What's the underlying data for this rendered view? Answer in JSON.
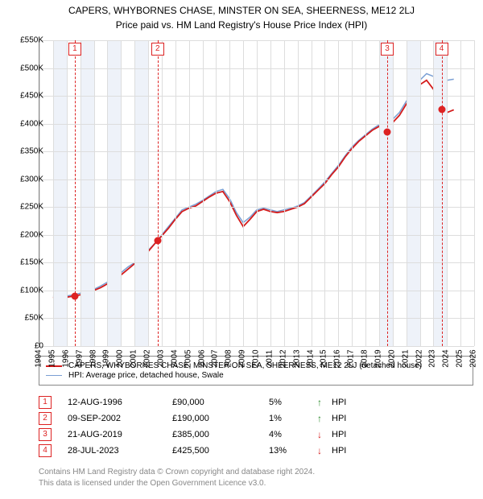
{
  "title_line1": "CAPERS, WHYBORNES CHASE, MINSTER ON SEA, SHEERNESS, ME12 2LJ",
  "title_line2": "Price paid vs. HM Land Registry's House Price Index (HPI)",
  "chart": {
    "type": "line",
    "x_min": 1994,
    "x_max": 2026,
    "y_min": 0,
    "y_max": 550000,
    "y_ticks": [
      0,
      50000,
      100000,
      150000,
      200000,
      250000,
      300000,
      350000,
      400000,
      450000,
      500000,
      550000
    ],
    "y_tick_labels": [
      "£0",
      "£50K",
      "£100K",
      "£150K",
      "£200K",
      "£250K",
      "£300K",
      "£350K",
      "£400K",
      "£450K",
      "£500K",
      "£550K"
    ],
    "x_ticks": [
      1994,
      1995,
      1996,
      1997,
      1998,
      1999,
      2000,
      2001,
      2002,
      2003,
      2004,
      2005,
      2006,
      2007,
      2008,
      2009,
      2010,
      2011,
      2012,
      2013,
      2014,
      2015,
      2016,
      2017,
      2018,
      2019,
      2020,
      2021,
      2022,
      2023,
      2024,
      2025,
      2026
    ],
    "band_years": [
      [
        1995,
        1996
      ],
      [
        1997,
        1998
      ],
      [
        1999,
        2000
      ],
      [
        2001,
        2002
      ],
      [
        2019,
        2020
      ],
      [
        2021,
        2022
      ],
      [
        2023,
        2024
      ]
    ],
    "grid_color": "#dddddd",
    "background_color": "#ffffff",
    "band_color": "#eef2f9",
    "series": [
      {
        "name": "HPI: Average price, detached house, Swale",
        "color": "#7a9fd4",
        "width": 1.5,
        "data": [
          [
            1995.0,
            90000
          ],
          [
            1995.5,
            88000
          ],
          [
            1996.0,
            90000
          ],
          [
            1996.5,
            92000
          ],
          [
            1997.0,
            95000
          ],
          [
            1997.5,
            98000
          ],
          [
            1998.0,
            102000
          ],
          [
            1998.5,
            108000
          ],
          [
            1999.0,
            115000
          ],
          [
            1999.5,
            122000
          ],
          [
            2000.0,
            132000
          ],
          [
            2000.5,
            142000
          ],
          [
            2001.0,
            150000
          ],
          [
            2001.5,
            160000
          ],
          [
            2002.0,
            172000
          ],
          [
            2002.5,
            185000
          ],
          [
            2003.0,
            200000
          ],
          [
            2003.5,
            215000
          ],
          [
            2004.0,
            230000
          ],
          [
            2004.5,
            245000
          ],
          [
            2005.0,
            250000
          ],
          [
            2005.5,
            255000
          ],
          [
            2006.0,
            262000
          ],
          [
            2006.5,
            270000
          ],
          [
            2007.0,
            278000
          ],
          [
            2007.5,
            282000
          ],
          [
            2008.0,
            265000
          ],
          [
            2008.5,
            240000
          ],
          [
            2009.0,
            222000
          ],
          [
            2009.5,
            232000
          ],
          [
            2010.0,
            245000
          ],
          [
            2010.5,
            248000
          ],
          [
            2011.0,
            245000
          ],
          [
            2011.5,
            242000
          ],
          [
            2012.0,
            245000
          ],
          [
            2012.5,
            248000
          ],
          [
            2013.0,
            252000
          ],
          [
            2013.5,
            258000
          ],
          [
            2014.0,
            270000
          ],
          [
            2014.5,
            282000
          ],
          [
            2015.0,
            295000
          ],
          [
            2015.5,
            310000
          ],
          [
            2016.0,
            325000
          ],
          [
            2016.5,
            342000
          ],
          [
            2017.0,
            358000
          ],
          [
            2017.5,
            370000
          ],
          [
            2018.0,
            380000
          ],
          [
            2018.5,
            390000
          ],
          [
            2019.0,
            398000
          ],
          [
            2019.5,
            402000
          ],
          [
            2020.0,
            408000
          ],
          [
            2020.5,
            420000
          ],
          [
            2021.0,
            440000
          ],
          [
            2021.5,
            458000
          ],
          [
            2022.0,
            478000
          ],
          [
            2022.5,
            490000
          ],
          [
            2023.0,
            485000
          ],
          [
            2023.5,
            480000
          ],
          [
            2024.0,
            478000
          ],
          [
            2024.5,
            480000
          ]
        ]
      },
      {
        "name": "CAPERS, WHYBORNES CHASE, MINSTER ON SEA, SHEERNESS, ME12 2LJ (detached house)",
        "color": "#d41c1c",
        "width": 1.8,
        "data": [
          [
            1995.0,
            88000
          ],
          [
            1995.5,
            85000
          ],
          [
            1996.0,
            88000
          ],
          [
            1996.6,
            90000
          ],
          [
            1997.0,
            92000
          ],
          [
            1997.5,
            95000
          ],
          [
            1998.0,
            100000
          ],
          [
            1998.5,
            105000
          ],
          [
            1999.0,
            112000
          ],
          [
            1999.5,
            120000
          ],
          [
            2000.0,
            128000
          ],
          [
            2000.5,
            138000
          ],
          [
            2001.0,
            148000
          ],
          [
            2001.5,
            158000
          ],
          [
            2002.0,
            170000
          ],
          [
            2002.7,
            190000
          ],
          [
            2003.0,
            198000
          ],
          [
            2003.5,
            212000
          ],
          [
            2004.0,
            228000
          ],
          [
            2004.5,
            242000
          ],
          [
            2005.0,
            248000
          ],
          [
            2005.5,
            252000
          ],
          [
            2006.0,
            260000
          ],
          [
            2006.5,
            268000
          ],
          [
            2007.0,
            275000
          ],
          [
            2007.5,
            278000
          ],
          [
            2008.0,
            260000
          ],
          [
            2008.5,
            235000
          ],
          [
            2009.0,
            215000
          ],
          [
            2009.5,
            228000
          ],
          [
            2010.0,
            242000
          ],
          [
            2010.5,
            246000
          ],
          [
            2011.0,
            242000
          ],
          [
            2011.5,
            240000
          ],
          [
            2012.0,
            242000
          ],
          [
            2012.5,
            246000
          ],
          [
            2013.0,
            250000
          ],
          [
            2013.5,
            256000
          ],
          [
            2014.0,
            268000
          ],
          [
            2014.5,
            280000
          ],
          [
            2015.0,
            292000
          ],
          [
            2015.5,
            308000
          ],
          [
            2016.0,
            322000
          ],
          [
            2016.5,
            340000
          ],
          [
            2017.0,
            355000
          ],
          [
            2017.5,
            368000
          ],
          [
            2018.0,
            378000
          ],
          [
            2018.5,
            388000
          ],
          [
            2019.0,
            395000
          ],
          [
            2019.6,
            385000
          ],
          [
            2020.0,
            402000
          ],
          [
            2020.5,
            415000
          ],
          [
            2021.0,
            435000
          ],
          [
            2021.5,
            452000
          ],
          [
            2022.0,
            470000
          ],
          [
            2022.5,
            478000
          ],
          [
            2023.0,
            462000
          ],
          [
            2023.6,
            425500
          ],
          [
            2024.0,
            420000
          ],
          [
            2024.5,
            425000
          ]
        ]
      }
    ],
    "reference_lines": [
      1996.6,
      2002.7,
      2019.6,
      2023.6
    ],
    "markers": [
      {
        "n": "1",
        "x": 1996.6,
        "y": 90000
      },
      {
        "n": "2",
        "x": 2002.7,
        "y": 190000
      },
      {
        "n": "3",
        "x": 2019.6,
        "y": 385000
      },
      {
        "n": "4",
        "x": 2023.6,
        "y": 425500
      }
    ]
  },
  "legend": {
    "items": [
      {
        "label": "CAPERS, WHYBORNES CHASE, MINSTER ON SEA, SHEERNESS, ME12 2LJ (detached house)",
        "color": "#d41c1c",
        "width": 2
      },
      {
        "label": "HPI: Average price, detached house, Swale",
        "color": "#7a9fd4",
        "width": 1.5
      }
    ]
  },
  "events": [
    {
      "n": "1",
      "date": "12-AUG-1996",
      "price": "£90,000",
      "delta": "5%",
      "arrow": "↑",
      "arrow_color": "#2a8a2a",
      "ref": "HPI"
    },
    {
      "n": "2",
      "date": "09-SEP-2002",
      "price": "£190,000",
      "delta": "1%",
      "arrow": "↑",
      "arrow_color": "#2a8a2a",
      "ref": "HPI"
    },
    {
      "n": "3",
      "date": "21-AUG-2019",
      "price": "£385,000",
      "delta": "4%",
      "arrow": "↓",
      "arrow_color": "#d41c1c",
      "ref": "HPI"
    },
    {
      "n": "4",
      "date": "28-JUL-2023",
      "price": "£425,500",
      "delta": "13%",
      "arrow": "↓",
      "arrow_color": "#d41c1c",
      "ref": "HPI"
    }
  ],
  "footer_line1": "Contains HM Land Registry data © Crown copyright and database right 2024.",
  "footer_line2": "This data is licensed under the Open Government Licence v3.0."
}
